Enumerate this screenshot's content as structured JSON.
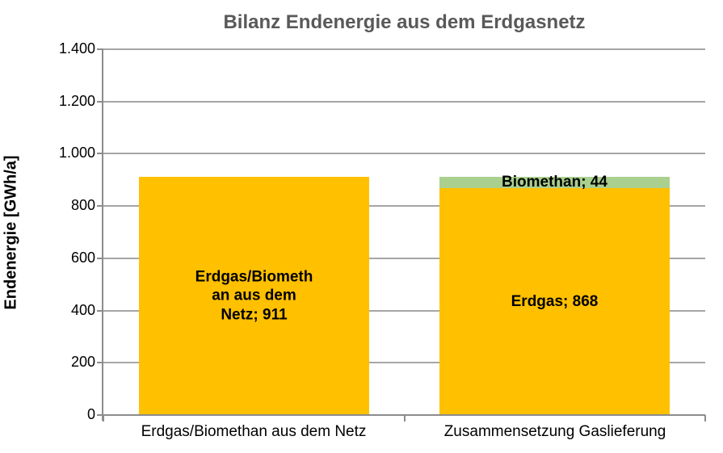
{
  "chart_data": {
    "type": "bar",
    "stacked": true,
    "title": "Bilanz Endenergie aus dem Erdgasnetz",
    "xlabel": "",
    "ylabel": "Endenergie [GWh/a]",
    "ylim": [
      0,
      1400
    ],
    "ytick_interval": 200,
    "yticks": [
      0,
      200,
      400,
      600,
      800,
      1000,
      1200,
      1400
    ],
    "ytick_labels": [
      "0",
      "200",
      "400",
      "600",
      "800",
      "1.000",
      "1.200",
      "1.400"
    ],
    "grid": true,
    "legend": "none",
    "categories": [
      "Erdgas/Biomethan aus dem Netz",
      "Zusammensetzung Gaslieferung"
    ],
    "columns": [
      {
        "category": "Erdgas/Biomethan aus dem Netz",
        "segments": [
          {
            "name": "Erdgas/Biomethan aus dem Netz",
            "value": 911,
            "color": "#FFC000",
            "label_lines": [
              "Erdgas/Biometh",
              "an aus dem",
              "Netz; 911"
            ],
            "label_text": "Erdgas/Biomethan aus dem Netz; 911"
          }
        ]
      },
      {
        "category": "Zusammensetzung Gaslieferung",
        "segments": [
          {
            "name": "Erdgas",
            "value": 868,
            "color": "#FFC000",
            "label_lines": [
              "Erdgas; 868"
            ],
            "label_text": "Erdgas; 868"
          },
          {
            "name": "Biomethan",
            "value": 44,
            "color": "#A9D08E",
            "label_lines": [
              "Biomethan; 44"
            ],
            "label_text": "Biomethan; 44"
          }
        ]
      }
    ],
    "colors": {
      "bar_yellow": "#FFC000",
      "bar_green": "#A9D08E",
      "title_text": "#595959",
      "gridline": "#A6A6A6",
      "axis": "#8C8C8C",
      "label_text": "#000000",
      "background": "#FFFFFF"
    }
  }
}
